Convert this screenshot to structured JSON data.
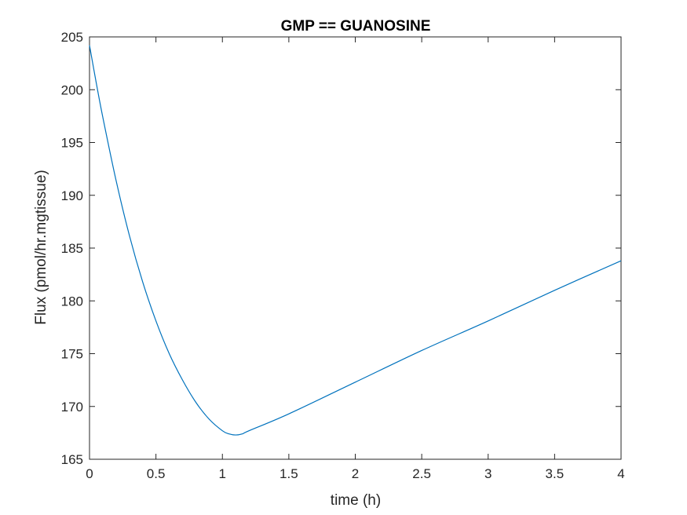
{
  "chart_data": {
    "type": "line",
    "title": "GMP == GUANOSINE",
    "xlabel": "time (h)",
    "ylabel": "Flux (pmol/hr.mgtissue)",
    "xlim": [
      0,
      4
    ],
    "ylim": [
      165,
      205
    ],
    "x_ticks": [
      0,
      0.5,
      1,
      1.5,
      2,
      2.5,
      3,
      3.5,
      4
    ],
    "x_tick_labels": [
      "0",
      "0.5",
      "1",
      "1.5",
      "2",
      "2.5",
      "3",
      "3.5",
      "4"
    ],
    "y_ticks": [
      165,
      170,
      175,
      180,
      185,
      190,
      195,
      200,
      205
    ],
    "y_tick_labels": [
      "165",
      "170",
      "175",
      "180",
      "185",
      "190",
      "195",
      "200",
      "205"
    ],
    "grid": false,
    "box": true,
    "series": [
      {
        "color": "#0072BD",
        "x": [
          0,
          0.05,
          0.1,
          0.2,
          0.3,
          0.4,
          0.5,
          0.6,
          0.7,
          0.8,
          0.9,
          1.0,
          1.05,
          1.1,
          1.15,
          1.2,
          1.5,
          2.0,
          2.5,
          3.0,
          3.5,
          4.0
        ],
        "y": [
          204.2,
          200.7,
          197.4,
          191.4,
          186.2,
          181.8,
          178.1,
          175.0,
          172.5,
          170.4,
          168.8,
          167.7,
          167.4,
          167.3,
          167.4,
          167.7,
          169.3,
          172.3,
          175.3,
          178.1,
          181.0,
          183.8
        ]
      }
    ]
  }
}
